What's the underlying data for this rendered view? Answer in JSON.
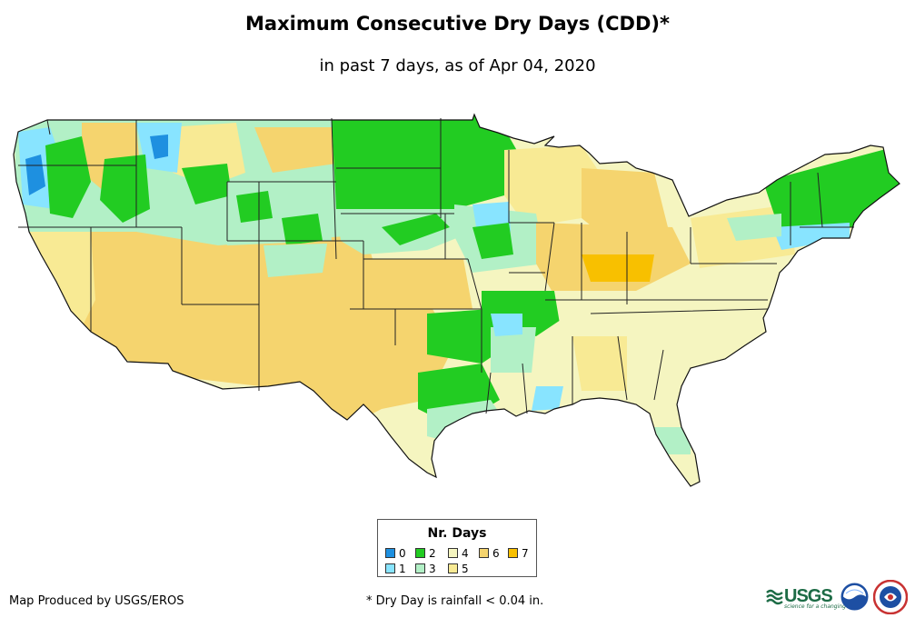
{
  "header": {
    "title": "Maximum Consecutive Dry Days (CDD)*",
    "subtitle": "in past 7 days, as of Apr 04, 2020"
  },
  "legend": {
    "title": "Nr. Days",
    "items": [
      {
        "label": "0",
        "color": "#1e90e0"
      },
      {
        "label": "1",
        "color": "#88e4ff"
      },
      {
        "label": "2",
        "color": "#22cc22"
      },
      {
        "label": "3",
        "color": "#b2f0c6"
      },
      {
        "label": "4",
        "color": "#f5f5c0"
      },
      {
        "label": "5",
        "color": "#f8ea94"
      },
      {
        "label": "6",
        "color": "#f5d46e"
      },
      {
        "label": "7",
        "color": "#f8c000"
      }
    ]
  },
  "footer": {
    "producer": "Map Produced by USGS/EROS",
    "footnote": "* Dry Day is rainfall < 0.04 in.",
    "usgs_logo_text": "USGS",
    "usgs_tagline": "science for a changing world"
  }
}
